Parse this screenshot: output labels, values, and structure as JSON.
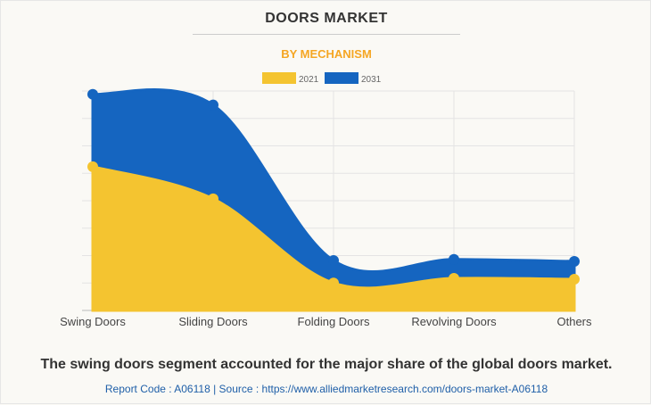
{
  "header": {
    "title": "DOORS MARKET",
    "subtitle": "BY MECHANISM"
  },
  "chart_data": {
    "type": "area",
    "title": "DOORS MARKET",
    "subtitle": "BY MECHANISM",
    "categories": [
      "Swing Doors",
      "Sliding Doors",
      "Folding Doors",
      "Revolving Doors",
      "Others"
    ],
    "series": [
      {
        "name": "2021",
        "color": "#f4c430",
        "values": [
          5.24,
          4.07,
          1.0,
          1.17,
          1.14
        ]
      },
      {
        "name": "2031",
        "color": "#1565c0",
        "values": [
          7.88,
          7.49,
          1.82,
          1.86,
          1.79
        ]
      }
    ],
    "ylim": [
      0,
      8
    ],
    "y_tick_labels": "none",
    "grid": true,
    "legend": "top",
    "smooth": true
  },
  "footer": {
    "caption": "The swing doors segment accounted for the major share of the global doors market.",
    "report": "Report Code : A06118  |  Source : https://www.alliedmarketresearch.com/doors-market-A06118"
  }
}
